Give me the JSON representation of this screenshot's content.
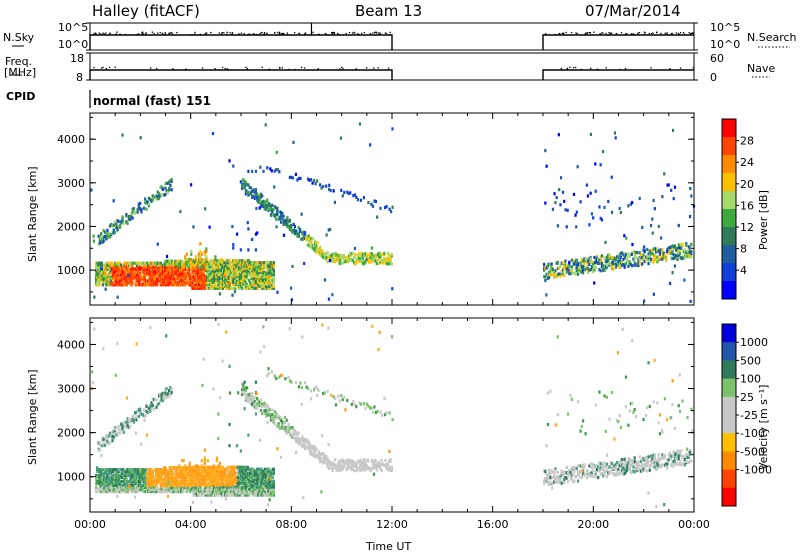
{
  "header": {
    "station": "Halley (fitACF)",
    "beam": "Beam 13",
    "date": "07/Mar/2014"
  },
  "top_panels": {
    "nsky_label": "N.Sky",
    "nsky_ticks": [
      "10^5",
      "10^0"
    ],
    "nsearch_label": "N.Search",
    "nsearch_ticks": [
      "10^5",
      "10^0"
    ],
    "freq_label": "Freq.",
    "freq_unit": "[MHz]",
    "freq_ticks": [
      "18",
      "8"
    ],
    "nave_label": "Nave",
    "nave_ticks": [
      "60",
      "0"
    ],
    "cpid_label": "CPID",
    "cpid_value": "normal (fast) 151"
  },
  "chart_data": [
    {
      "type": "heatmap",
      "name": "power",
      "ylabel": "Slant Range [km]",
      "yticks": [
        "4000",
        "3000",
        "2000",
        "1000"
      ],
      "ylim": [
        200,
        4600
      ],
      "xlim": [
        0,
        24
      ],
      "xticks": [
        "00:00",
        "04:00",
        "08:00",
        "12:00",
        "16:00",
        "20:00",
        "00:00"
      ],
      "colorbar": {
        "label": "Power [dB]",
        "ticks": [
          "28",
          "24",
          "20",
          "16",
          "12",
          "8",
          "4"
        ],
        "colors": [
          "#ff0000",
          "#ff4400",
          "#ff8c00",
          "#ffc000",
          "#a6d96a",
          "#3caa3c",
          "#2f7b5a",
          "#1f5fa0",
          "#1040d8",
          "#0000ff"
        ]
      },
      "data_gaps_hours": [
        [
          12,
          18
        ]
      ]
    },
    {
      "type": "heatmap",
      "name": "velocity",
      "ylabel": "Slant Range [km]",
      "yticks": [
        "4000",
        "3000",
        "2000",
        "1000"
      ],
      "ylim": [
        200,
        4600
      ],
      "xlim": [
        0,
        24
      ],
      "xticks": [
        "00:00",
        "04:00",
        "08:00",
        "12:00",
        "16:00",
        "20:00",
        "00:00"
      ],
      "xlabel": "Time UT",
      "colorbar": {
        "label": "Velocity [m s⁻¹]",
        "ticks": [
          "1000",
          "500",
          "100",
          "25",
          "-25",
          "-100",
          "-500",
          "-1000"
        ],
        "colors": [
          "#0000dd",
          "#2255a8",
          "#2f7b5a",
          "#7ac26c",
          "#c8c8c8",
          "#c8c8c8",
          "#ffc000",
          "#ff8c00",
          "#ff4400",
          "#ff0000"
        ]
      },
      "data_gaps_hours": [
        [
          12,
          18
        ]
      ]
    }
  ]
}
